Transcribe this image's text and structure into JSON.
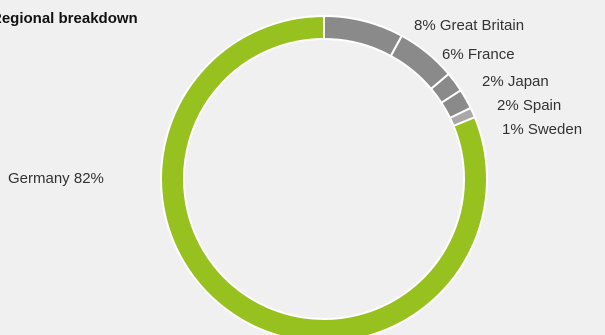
{
  "chart_data": {
    "type": "pie",
    "title": "Regional breakdown",
    "slices": [
      {
        "name": "Great Britain",
        "value": 8,
        "label": "8% Great Britain",
        "color": "#8a8a8a"
      },
      {
        "name": "France",
        "value": 6,
        "label": "6% France",
        "color": "#8a8a8a"
      },
      {
        "name": "Japan",
        "value": 2,
        "label": "2% Japan",
        "color": "#8a8a8a"
      },
      {
        "name": "Spain",
        "value": 2,
        "label": "2% Spain",
        "color": "#8a8a8a"
      },
      {
        "name": "Sweden",
        "value": 1,
        "label": "1% Sweden",
        "color": "#a8a8a8"
      },
      {
        "name": "Germany",
        "value": 82,
        "label": "Germany 82%",
        "color": "#97c11f"
      }
    ]
  }
}
